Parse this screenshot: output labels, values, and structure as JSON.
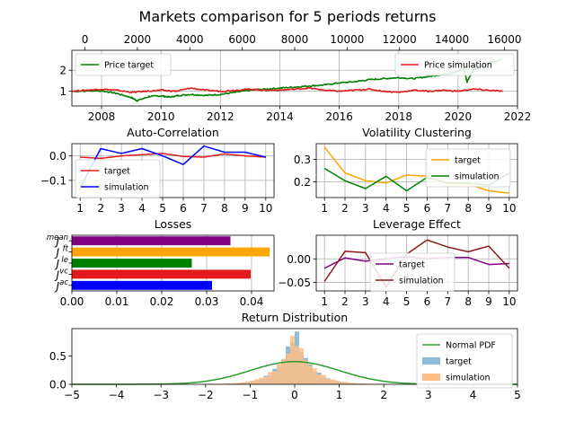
{
  "figure_title": "Markets comparison for 5 periods returns",
  "colors": {
    "target_green": "#008000",
    "simulation_red": "#e31a1c",
    "blue": "#0000ff",
    "orange": "#ffa500",
    "darkred": "#8b1a1a",
    "purple": "#800080",
    "hist_blue": "#8fbbd9",
    "hist_orange": "#ffbe86",
    "pdf_green": "#2ca02c"
  },
  "chart_data": [
    {
      "id": "price",
      "type": "line",
      "title": "",
      "xlim": [
        2007,
        2022
      ],
      "ylim": [
        0.3,
        2.95
      ],
      "x_ticks": [
        2008,
        2010,
        2012,
        2014,
        2016,
        2018,
        2020,
        2022
      ],
      "y_ticks": [
        1,
        2
      ],
      "top_xlim": [
        -500,
        16500
      ],
      "top_ticks": [
        0,
        2000,
        4000,
        6000,
        8000,
        10000,
        12000,
        14000,
        16000
      ],
      "grid": true,
      "legend": "top-left / top-right",
      "series": [
        {
          "name": "Price target",
          "color": "#008000",
          "x": [
            2007.0,
            2008.0,
            2008.5,
            2009.0,
            2009.2,
            2009.6,
            2010.0,
            2010.3,
            2010.6,
            2011.0,
            2011.5,
            2012.0,
            2012.5,
            2013.0,
            2013.5,
            2014.0,
            2014.5,
            2015.0,
            2015.5,
            2016.0,
            2016.5,
            2017.0,
            2017.5,
            2018.0,
            2018.5,
            2019.0,
            2019.5,
            2020.0,
            2020.2,
            2020.3,
            2020.5,
            2021.0,
            2021.5
          ],
          "y": [
            1.0,
            1.02,
            0.9,
            0.7,
            0.55,
            0.75,
            0.78,
            0.72,
            0.8,
            0.85,
            0.8,
            0.85,
            0.95,
            1.05,
            1.1,
            1.15,
            1.2,
            1.25,
            1.3,
            1.4,
            1.45,
            1.55,
            1.6,
            1.65,
            1.6,
            1.7,
            1.8,
            1.95,
            2.1,
            1.45,
            2.0,
            2.3,
            2.55
          ]
        },
        {
          "name": "Price simulation",
          "color": "#e31a1c",
          "x": [
            2007.0,
            2007.5,
            2008.0,
            2008.5,
            2009.0,
            2009.5,
            2010.0,
            2010.5,
            2011.0,
            2011.5,
            2012.0,
            2012.5,
            2013.0,
            2013.5,
            2014.0,
            2014.5,
            2015.0,
            2015.5,
            2016.0,
            2016.5,
            2017.0,
            2017.5,
            2018.0,
            2018.5,
            2019.0,
            2019.5,
            2020.0,
            2020.5,
            2021.0,
            2021.5
          ],
          "y": [
            1.0,
            1.05,
            1.1,
            1.05,
            0.95,
            1.0,
            1.05,
            1.0,
            1.15,
            1.05,
            1.0,
            1.05,
            1.1,
            1.05,
            1.05,
            1.1,
            1.15,
            1.05,
            1.0,
            1.05,
            1.1,
            1.0,
            0.95,
            1.05,
            1.0,
            1.05,
            1.0,
            1.1,
            1.05,
            1.0
          ]
        }
      ]
    },
    {
      "id": "autocorr",
      "type": "line",
      "title": "Auto-Correlation",
      "xlim": [
        0.6,
        10.4
      ],
      "ylim": [
        -0.17,
        0.05
      ],
      "x_ticks": [
        1,
        2,
        3,
        4,
        5,
        6,
        7,
        8,
        9,
        10
      ],
      "y_ticks": [
        -0.1,
        0.0
      ],
      "y_tick_labels": [
        "−0.1",
        "0.0"
      ],
      "grid": true,
      "legend": "left",
      "categories": [
        1,
        2,
        3,
        4,
        5,
        6,
        7,
        8,
        9,
        10
      ],
      "series": [
        {
          "name": "target",
          "color": "#e31a1c",
          "values": [
            -0.005,
            -0.01,
            0.0,
            0.005,
            0.01,
            -0.002,
            -0.005,
            0.008,
            0.0,
            -0.005
          ]
        },
        {
          "name": "simulation",
          "color": "#0000ff",
          "values": [
            -0.13,
            0.03,
            0.01,
            0.03,
            0.0,
            -0.035,
            0.04,
            0.015,
            0.015,
            -0.005
          ]
        }
      ]
    },
    {
      "id": "volclust",
      "type": "line",
      "title": "Volatility Clustering",
      "xlim": [
        0.6,
        10.4
      ],
      "ylim": [
        0.13,
        0.37
      ],
      "x_ticks": [
        1,
        2,
        3,
        4,
        5,
        6,
        7,
        8,
        9,
        10
      ],
      "y_ticks": [
        0.2,
        0.3
      ],
      "y_tick_labels": [
        "0.2",
        "0.3"
      ],
      "grid": true,
      "legend": "top-right",
      "categories": [
        1,
        2,
        3,
        4,
        5,
        6,
        7,
        8,
        9,
        10
      ],
      "series": [
        {
          "name": "target",
          "color": "#ffa500",
          "values": [
            0.355,
            0.24,
            0.205,
            0.195,
            0.23,
            0.225,
            0.19,
            0.19,
            0.16,
            0.15
          ]
        },
        {
          "name": "simulation",
          "color": "#008000",
          "values": [
            0.26,
            0.205,
            0.17,
            0.225,
            0.16,
            0.22,
            0.195,
            0.195,
            0.185,
            0.24
          ]
        }
      ]
    },
    {
      "id": "losses",
      "type": "bar",
      "title": "Losses",
      "xlim": [
        0,
        0.045
      ],
      "x_ticks": [
        0.0,
        0.01,
        0.02,
        0.03,
        0.04
      ],
      "x_tick_labels": [
        "0.00",
        "0.01",
        "0.02",
        "0.03",
        "0.04"
      ],
      "grid": true,
      "categories": [
        "mean",
        "ft",
        "le",
        "vc",
        "ac"
      ],
      "labels": [
        "J",
        "J",
        "J",
        "J",
        "J"
      ],
      "values": [
        0.0353,
        0.044,
        0.0267,
        0.0398,
        0.0312
      ],
      "colors": [
        "#800080",
        "#ffa500",
        "#008000",
        "#e31a1c",
        "#0000ff"
      ]
    },
    {
      "id": "leverage",
      "type": "line",
      "title": "Leverage Effect",
      "xlim": [
        0.6,
        10.4
      ],
      "ylim": [
        -0.068,
        0.05
      ],
      "x_ticks": [
        1,
        2,
        3,
        4,
        5,
        6,
        7,
        8,
        9,
        10
      ],
      "y_ticks": [
        -0.05,
        0.0
      ],
      "y_tick_labels": [
        "−0.05",
        "0.00"
      ],
      "grid": true,
      "legend": "center",
      "categories": [
        1,
        2,
        3,
        4,
        5,
        6,
        7,
        8,
        9,
        10
      ],
      "series": [
        {
          "name": "target",
          "color": "#800080",
          "values": [
            -0.02,
            0.002,
            -0.005,
            0.0,
            0.005,
            0.0,
            0.003,
            0.003,
            -0.012,
            -0.01
          ]
        },
        {
          "name": "simulation",
          "color": "#8b1a1a",
          "values": [
            -0.048,
            0.016,
            0.013,
            -0.06,
            0.01,
            0.04,
            0.025,
            0.015,
            0.027,
            -0.02
          ]
        }
      ]
    },
    {
      "id": "returns",
      "type": "histogram",
      "title": "Return Distribution",
      "xlim": [
        -5,
        5
      ],
      "ylim": [
        0,
        0.98
      ],
      "x_ticks": [
        -5,
        -4,
        -3,
        -2,
        -1,
        0,
        1,
        2,
        3,
        4,
        5
      ],
      "x_tick_labels": [
        "−5",
        "−4",
        "−3",
        "−2",
        "−1",
        "0",
        "1",
        "2",
        "3",
        "4",
        "5"
      ],
      "y_ticks": [
        0.0,
        0.5
      ],
      "y_tick_labels": [
        "0.0",
        "0.5"
      ],
      "legend": "top-right",
      "pdf": {
        "name": "Normal PDF",
        "color": "#2ca02c",
        "mu": 0,
        "sigma": 1
      },
      "series": [
        {
          "name": "target",
          "color": "#8fbbd9",
          "peak": 0.97,
          "scale": 0.38
        },
        {
          "name": "simulation",
          "color": "#ffbe86",
          "peak": 0.88,
          "scale": 0.42
        }
      ]
    }
  ]
}
